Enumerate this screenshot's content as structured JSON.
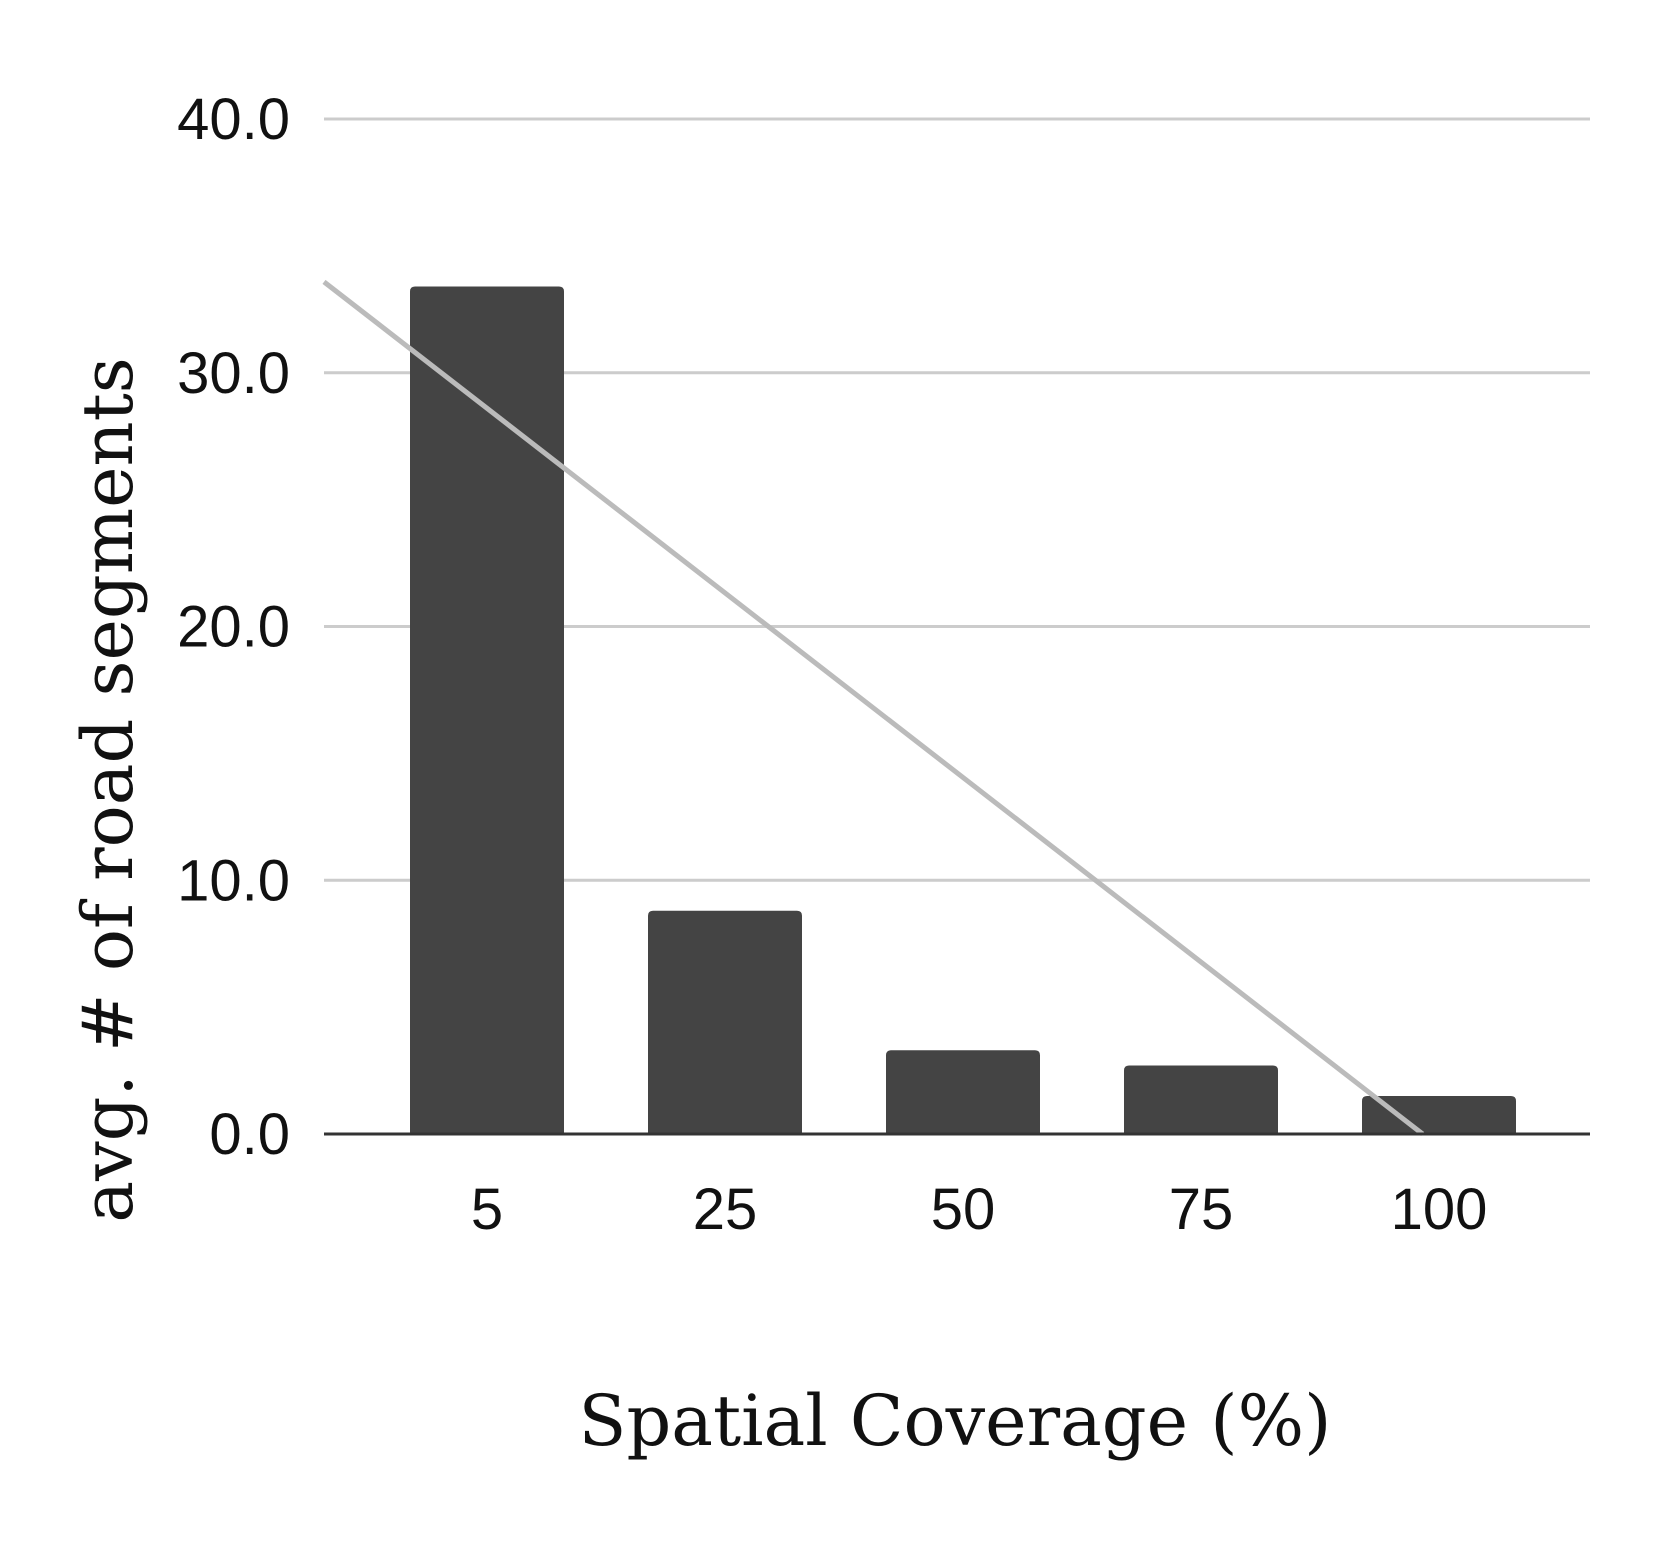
{
  "chart_data": {
    "type": "bar",
    "categories": [
      "5",
      "25",
      "50",
      "75",
      "100"
    ],
    "values": [
      33.4,
      8.8,
      3.3,
      2.7,
      1.5
    ],
    "trendline": {
      "type": "linear",
      "start": 28.6,
      "end": -0.5
    },
    "xlabel": "Spatial Coverage (%)",
    "ylabel": "avg. # of road segments",
    "ylim": [
      0,
      40
    ],
    "yticks": [
      "0.0",
      "10.0",
      "20.0",
      "30.0",
      "40.0"
    ],
    "grid": true,
    "colors": {
      "bar": "#444444",
      "grid": "#cccccc",
      "trendline": "#bbbbbb",
      "axis": "#333333"
    }
  }
}
